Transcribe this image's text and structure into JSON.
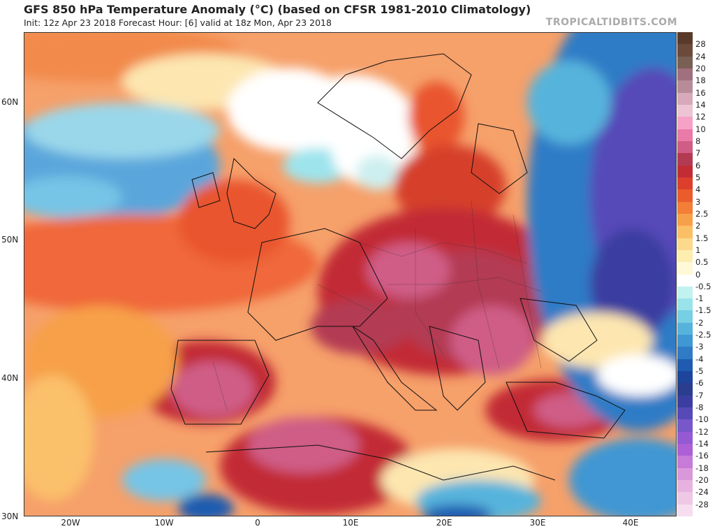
{
  "header": {
    "title": "GFS 850 hPa Temperature Anomaly (°C) (based on CFSR 1981-2010 Climatology)",
    "subtitle": "Init: 12z Apr 23 2018   Forecast Hour: [6]   valid at 18z Mon, Apr 23 2018",
    "brand": "TROPICALTIDBITS.COM"
  },
  "map": {
    "lat_labels": [
      "60N",
      "50N",
      "40N",
      "30N"
    ],
    "lon_labels": [
      "20W",
      "10W",
      "0",
      "10E",
      "20E",
      "30E",
      "40E"
    ]
  },
  "colorbar": {
    "labels": [
      "28",
      "24",
      "20",
      "18",
      "16",
      "14",
      "12",
      "10",
      "8",
      "7",
      "6",
      "5",
      "4",
      "3",
      "2.5",
      "2",
      "1.5",
      "1",
      "0.5",
      "0",
      "-0.5",
      "-1",
      "-1.5",
      "-2",
      "-2.5",
      "-3",
      "-4",
      "-5",
      "-6",
      "-7",
      "-8",
      "-10",
      "-12",
      "-14",
      "-16",
      "-18",
      "-20",
      "-24",
      "-28"
    ],
    "colors": [
      "#6b4a3a",
      "#7a5f55",
      "#a0707e",
      "#b88b98",
      "#d7a9bb",
      "#ecc4d4",
      "#f6a2c6",
      "#ea7aa8",
      "#cf5d86",
      "#b33a53",
      "#c22c35",
      "#dc3f2c",
      "#ea5c2c",
      "#f27e37",
      "#f7a04a",
      "#fbbf68",
      "#fcd98d",
      "#fdeeb0",
      "#fff9d8",
      "#ffffff",
      "#c2f2f0",
      "#9ae3ea",
      "#76cfe3",
      "#56b4dc",
      "#3f97d3",
      "#2f7bc6",
      "#1f5bb0",
      "#1c459b",
      "#2a3d8e",
      "#3b3ea0",
      "#5649b8",
      "#7857c9",
      "#9459d3",
      "#ad5fd6",
      "#c67bd9",
      "#d998da",
      "#e7b2df",
      "#efc8e6",
      "#f6def0"
    ]
  }
}
